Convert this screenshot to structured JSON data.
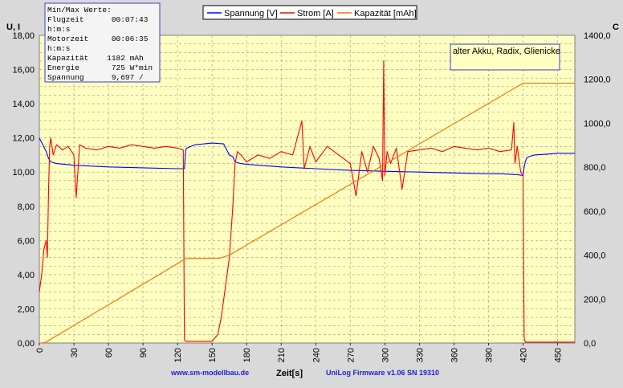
{
  "chart_data": {
    "type": "line",
    "xlabel": "Zeit[s]",
    "ylabel_left": "U, I",
    "ylabel_right": "C",
    "xlim": [
      0,
      465
    ],
    "ylim_left": [
      0,
      18
    ],
    "ylim_right": [
      0,
      1400
    ],
    "x_ticks": [
      0,
      30,
      60,
      90,
      120,
      150,
      180,
      210,
      240,
      270,
      300,
      330,
      360,
      390,
      420,
      450
    ],
    "y_left_ticks": [
      "0,00",
      "2,00",
      "4,00",
      "6,00",
      "8,00",
      "10,00",
      "12,00",
      "14,00",
      "16,00",
      "18,00"
    ],
    "y_right_ticks": [
      "0,0",
      "200,0",
      "400,0",
      "600,0",
      "800,0",
      "1000,0",
      "1200,0",
      "1400,0"
    ],
    "grid": true,
    "legend": "top-center",
    "series": [
      {
        "name": "Spannung [V]",
        "color": "#0000ff",
        "axis": "left",
        "x": [
          0,
          3,
          6,
          8,
          10,
          15,
          30,
          60,
          90,
          120,
          126,
          127,
          128,
          135,
          150,
          160,
          165,
          168,
          170,
          175,
          180,
          210,
          240,
          270,
          300,
          330,
          360,
          390,
          400,
          415,
          420,
          421,
          422,
          423,
          425,
          430,
          440,
          450,
          465
        ],
        "y": [
          12.0,
          11.6,
          11.2,
          10.8,
          10.6,
          10.5,
          10.4,
          10.3,
          10.25,
          10.2,
          10.2,
          11.3,
          11.4,
          11.6,
          11.7,
          11.65,
          11.0,
          10.9,
          10.6,
          10.5,
          10.45,
          10.3,
          10.2,
          10.1,
          10.05,
          10.0,
          9.95,
          9.9,
          9.9,
          9.85,
          9.8,
          10.3,
          10.6,
          10.8,
          10.9,
          11.0,
          11.05,
          11.1,
          11.1
        ]
      },
      {
        "name": "Strom [A]",
        "color": "#ff0000",
        "axis": "left",
        "x": [
          0,
          2,
          4,
          6,
          7,
          8,
          9,
          10,
          12,
          15,
          20,
          25,
          30,
          32,
          35,
          40,
          50,
          60,
          70,
          80,
          90,
          100,
          110,
          120,
          125,
          126,
          127,
          128,
          130,
          140,
          150,
          155,
          158,
          160,
          162,
          165,
          168,
          170,
          172,
          175,
          180,
          190,
          200,
          210,
          220,
          228,
          230,
          235,
          240,
          250,
          260,
          270,
          275,
          280,
          285,
          290,
          295,
          298,
          299,
          300,
          302,
          305,
          310,
          315,
          320,
          330,
          340,
          350,
          360,
          370,
          380,
          390,
          400,
          410,
          412,
          413,
          415,
          418,
          420,
          421,
          422,
          425,
          430,
          440,
          450,
          465
        ],
        "y": [
          3.0,
          4.0,
          5.5,
          6.0,
          5.0,
          9.0,
          11.5,
          12.0,
          11.0,
          11.6,
          11.3,
          11.5,
          11.0,
          8.5,
          11.6,
          11.4,
          11.3,
          11.5,
          11.4,
          11.6,
          11.5,
          11.4,
          11.5,
          11.4,
          11.3,
          0.2,
          0.1,
          0.1,
          0.1,
          0.1,
          0.1,
          0.5,
          1.5,
          2.5,
          3.5,
          5.0,
          8.0,
          10.5,
          11.2,
          11.0,
          10.6,
          11.0,
          10.8,
          11.2,
          11.0,
          13.0,
          10.2,
          11.5,
          10.6,
          11.5,
          11.0,
          10.5,
          8.6,
          11.2,
          10.0,
          11.5,
          10.8,
          9.5,
          16.5,
          9.8,
          11.2,
          10.5,
          11.4,
          9.0,
          11.2,
          11.3,
          11.4,
          11.2,
          11.5,
          11.4,
          11.3,
          11.4,
          11.2,
          11.3,
          12.9,
          10.5,
          11.5,
          10.0,
          9.8,
          0.3,
          0.05,
          0.05,
          0.05,
          0.05,
          0.05,
          0.05
        ]
      },
      {
        "name": "Kapazität [mAh]",
        "color": "#ff6a00",
        "axis": "right",
        "x": [
          0,
          5,
          126,
          128,
          155,
          158,
          165,
          420,
          422,
          465
        ],
        "y": [
          0,
          2,
          380,
          385,
          385,
          388,
          400,
          1182,
          1182,
          1182
        ]
      }
    ]
  },
  "stats_box": {
    "lines": [
      "Min/Max Werte:",
      "Flugzeit      00:07:43",
      "h:m:s",
      "Motorzeit     00:06:35",
      "h:m:s",
      "Kapazität    1182 mAh",
      "Energie       725 W*min",
      "Spannung      9,697 /"
    ]
  },
  "annotation": "alter Akku, Radix, Glienicke",
  "footer": {
    "website": "www.sm-modellbau.de",
    "firmware": "UniLog Firmware v1.06 SN 19310"
  },
  "colors": {
    "plot_bg": "#ffffc0",
    "window_bg": "#d9d9d9",
    "grid": "#9a9a9a",
    "box_border": "#3a3ae0",
    "box_bg": "#f4f4f4"
  }
}
